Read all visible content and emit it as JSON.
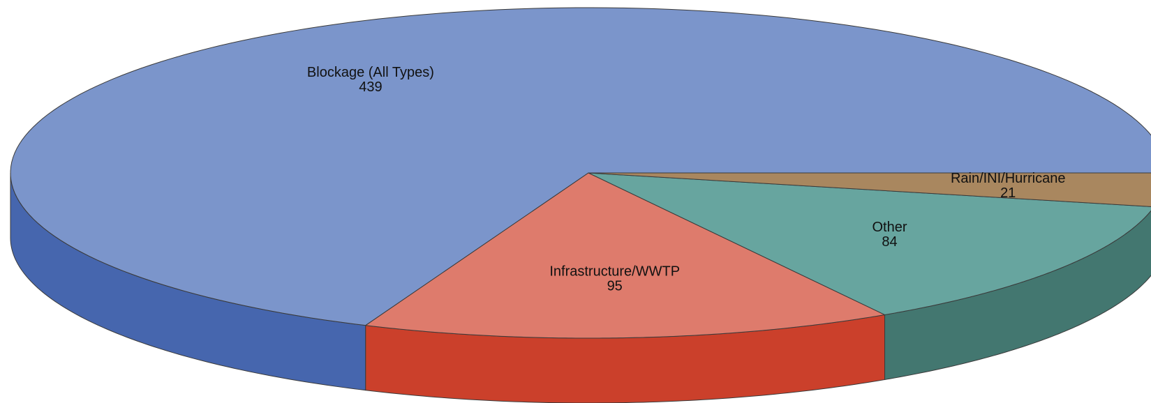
{
  "chart_data": {
    "type": "pie",
    "style": "3d",
    "title": "",
    "categories": [
      "Blockage (All Types)",
      "Infrastructure/WWTP",
      "Other",
      "Rain/INI/Hurricane"
    ],
    "values": [
      439,
      95,
      84,
      21
    ],
    "colors": {
      "Blockage (All Types)": {
        "top": "#7b95cb",
        "side": "#4666ae"
      },
      "Infrastructure/WWTP": {
        "top": "#de7b6c",
        "side": "#cb402b"
      },
      "Other": {
        "top": "#67a59f",
        "side": "#437770"
      },
      "Rain/INI/Hurricane": {
        "top": "#a9875f",
        "side": "#7c5e3b"
      }
    },
    "slices": [
      {
        "label": "Blockage (All Types)",
        "value": 439
      },
      {
        "label": "Infrastructure/WWTP",
        "value": 95
      },
      {
        "label": "Other",
        "value": 84
      },
      {
        "label": "Rain/INI/Hurricane",
        "value": 21
      }
    ]
  }
}
